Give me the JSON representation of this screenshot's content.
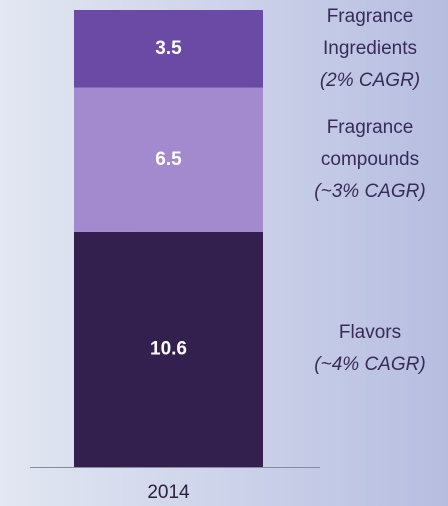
{
  "chart_data": {
    "type": "stacked_bar",
    "categories": [
      "2014"
    ],
    "series": [
      {
        "name": "Flavors",
        "note": "(~4% CAGR)",
        "color": "#33204f",
        "values": [
          10.6
        ]
      },
      {
        "name": "Fragrance compounds",
        "note": "(~3% CAGR)",
        "color": "#a38ace",
        "values": [
          6.5
        ]
      },
      {
        "name": "Fragrance Ingredients",
        "note": "(2% CAGR)",
        "color": "#6b4aa6",
        "values": [
          3.5
        ]
      }
    ]
  }
}
